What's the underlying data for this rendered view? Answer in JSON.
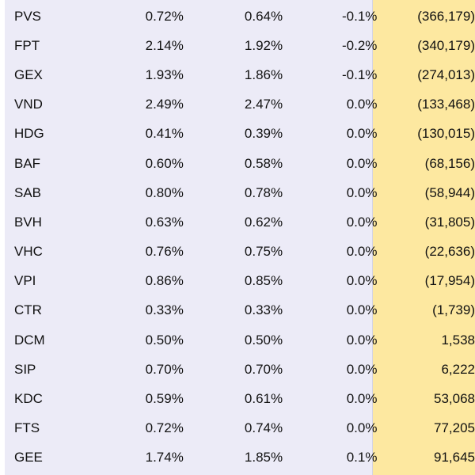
{
  "rows": [
    {
      "code": "PVS",
      "v1": "0.72%",
      "v2": "0.64%",
      "chg": "-0.1%",
      "val": "(366,179)"
    },
    {
      "code": "FPT",
      "v1": "2.14%",
      "v2": "1.92%",
      "chg": "-0.2%",
      "val": "(340,179)"
    },
    {
      "code": "GEX",
      "v1": "1.93%",
      "v2": "1.86%",
      "chg": "-0.1%",
      "val": "(274,013)"
    },
    {
      "code": "VND",
      "v1": "2.49%",
      "v2": "2.47%",
      "chg": "0.0%",
      "val": "(133,468)"
    },
    {
      "code": "HDG",
      "v1": "0.41%",
      "v2": "0.39%",
      "chg": "0.0%",
      "val": "(130,015)"
    },
    {
      "code": "BAF",
      "v1": "0.60%",
      "v2": "0.58%",
      "chg": "0.0%",
      "val": "(68,156)"
    },
    {
      "code": "SAB",
      "v1": "0.80%",
      "v2": "0.78%",
      "chg": "0.0%",
      "val": "(58,944)"
    },
    {
      "code": "BVH",
      "v1": "0.63%",
      "v2": "0.62%",
      "chg": "0.0%",
      "val": "(31,805)"
    },
    {
      "code": "VHC",
      "v1": "0.76%",
      "v2": "0.75%",
      "chg": "0.0%",
      "val": "(22,636)"
    },
    {
      "code": "VPI",
      "v1": "0.86%",
      "v2": "0.85%",
      "chg": "0.0%",
      "val": "(17,954)"
    },
    {
      "code": "CTR",
      "v1": "0.33%",
      "v2": "0.33%",
      "chg": "0.0%",
      "val": "(1,739)"
    },
    {
      "code": "DCM",
      "v1": "0.50%",
      "v2": "0.50%",
      "chg": "0.0%",
      "val": "1,538"
    },
    {
      "code": "SIP",
      "v1": "0.70%",
      "v2": "0.70%",
      "chg": "0.0%",
      "val": "6,222"
    },
    {
      "code": "KDC",
      "v1": "0.59%",
      "v2": "0.61%",
      "chg": "0.0%",
      "val": "53,068"
    },
    {
      "code": "FTS",
      "v1": "0.72%",
      "v2": "0.74%",
      "chg": "0.0%",
      "val": "77,205"
    },
    {
      "code": "GEE",
      "v1": "1.74%",
      "v2": "1.85%",
      "chg": "0.1%",
      "val": "91,645"
    }
  ],
  "colors": {
    "row_bg": "#ecebf7",
    "highlight_col": "#fde8a0",
    "text": "#111111"
  }
}
